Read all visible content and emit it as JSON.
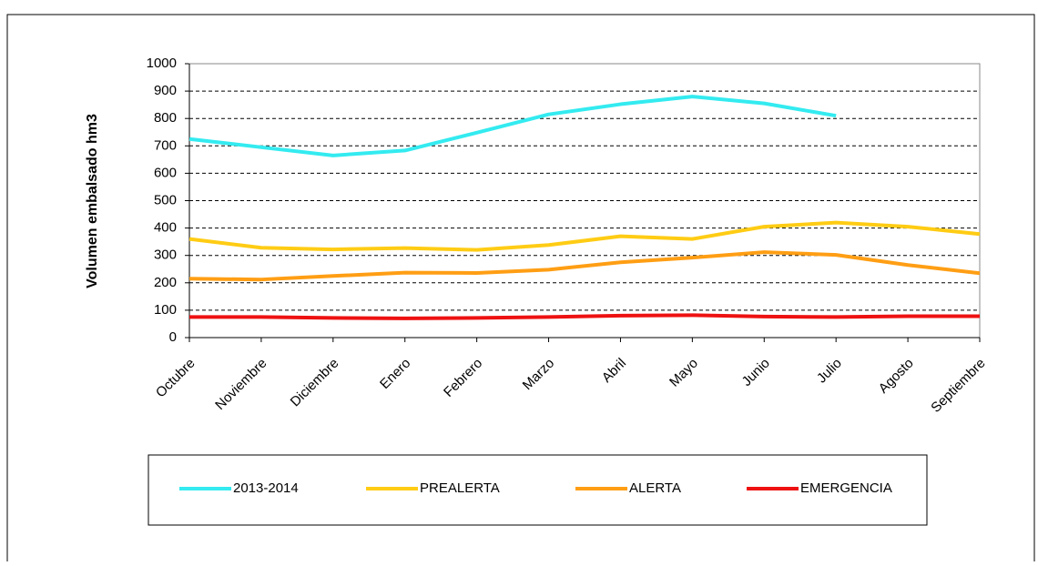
{
  "chart_data": {
    "type": "line",
    "y_label": "Volumen embalsado hm3",
    "categories": [
      "Octubre",
      "Noviembre",
      "Diciembre",
      "Enero",
      "Febrero",
      "Marzo",
      "Abril",
      "Mayo",
      "Junio",
      "Julio",
      "Agosto",
      "Septiembre"
    ],
    "series": [
      {
        "name": "2013-2014",
        "color": "#33ebf0",
        "values": [
          725,
          695,
          665,
          683,
          748,
          815,
          852,
          880,
          855,
          810,
          null,
          null
        ]
      },
      {
        "name": "PREALERTA",
        "color": "#ffcc14",
        "values": [
          360,
          328,
          322,
          327,
          320,
          338,
          370,
          360,
          405,
          420,
          405,
          378
        ]
      },
      {
        "name": "ALERTA",
        "color": "#ff9e14",
        "values": [
          215,
          212,
          225,
          237,
          236,
          248,
          275,
          292,
          312,
          302,
          265,
          235
        ]
      },
      {
        "name": "EMERGENCIA",
        "color": "#ee1111",
        "values": [
          75,
          75,
          72,
          70,
          72,
          75,
          80,
          82,
          77,
          75,
          78,
          78
        ]
      }
    ],
    "ylim": [
      0,
      1000
    ],
    "yticks": [
      0,
      100,
      200,
      300,
      400,
      500,
      600,
      700,
      800,
      900,
      1000
    ],
    "grid": true
  }
}
